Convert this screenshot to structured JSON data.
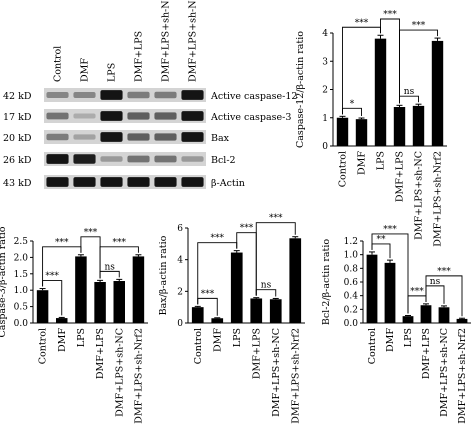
{
  "blot": {
    "lanes": [
      "Control",
      "DMF",
      "LPS",
      "DMF+LPS",
      "DMF+LPS+sh-NC",
      "DMF+LPS+sh-Nrf2"
    ],
    "rows": [
      {
        "kd": "42 kD",
        "protein": "Active caspase-12",
        "levels": [
          0.35,
          0.35,
          0.95,
          0.4,
          0.4,
          0.95
        ]
      },
      {
        "kd": "17 kD",
        "protein": "Active caspase-3",
        "levels": [
          0.45,
          0.15,
          0.95,
          0.55,
          0.55,
          0.95
        ]
      },
      {
        "kd": "20 kD",
        "protein": "Bax",
        "levels": [
          0.4,
          0.2,
          0.95,
          0.55,
          0.55,
          0.95
        ]
      },
      {
        "kd": "26 kD",
        "protein": "Bcl-2",
        "levels": [
          0.95,
          0.9,
          0.25,
          0.45,
          0.45,
          0.25
        ]
      },
      {
        "kd": "43 kD",
        "protein": "β-Actin",
        "levels": [
          0.95,
          0.95,
          0.95,
          0.95,
          0.95,
          0.95
        ]
      }
    ]
  },
  "chart_data": [
    {
      "type": "bar",
      "categories": [
        "Control",
        "DMF",
        "LPS",
        "DMF+LPS",
        "DMF+LPS+sh-NC",
        "DMF+LPS+sh-Nrf2"
      ],
      "values": [
        1.0,
        0.95,
        3.8,
        1.38,
        1.42,
        3.72
      ],
      "errors": [
        0.05,
        0.04,
        0.12,
        0.06,
        0.06,
        0.1
      ],
      "ylabel": "Caspase-12/β-actin ratio",
      "ylim": [
        0,
        4
      ],
      "yticks": [
        0,
        1,
        2,
        3,
        4
      ],
      "significance": [
        {
          "from": 0,
          "to": 1,
          "label": "*"
        },
        {
          "from": 0,
          "to": 2,
          "label": "***"
        },
        {
          "from": 2,
          "to": 3,
          "label": "***"
        },
        {
          "from": 3,
          "to": 4,
          "label": "ns"
        },
        {
          "from": 3,
          "to": 5,
          "label": "***"
        }
      ]
    },
    {
      "type": "bar",
      "categories": [
        "Control",
        "DMF",
        "LPS",
        "DMF+LPS",
        "DMF+LPS+sh-NC",
        "DMF+LPS+sh-Nrf2"
      ],
      "values": [
        1.0,
        0.15,
        2.03,
        1.25,
        1.28,
        2.03
      ],
      "errors": [
        0.05,
        0.02,
        0.05,
        0.05,
        0.05,
        0.05
      ],
      "ylabel": "Caspase-3/β-actin ratio",
      "ylim": [
        0,
        2.5
      ],
      "yticks": [
        0.0,
        0.5,
        1.0,
        1.5,
        2.0,
        2.5
      ],
      "significance": [
        {
          "from": 0,
          "to": 1,
          "label": "***"
        },
        {
          "from": 0,
          "to": 2,
          "label": "***"
        },
        {
          "from": 2,
          "to": 3,
          "label": "***"
        },
        {
          "from": 3,
          "to": 4,
          "label": "ns"
        },
        {
          "from": 3,
          "to": 5,
          "label": "***"
        }
      ]
    },
    {
      "type": "bar",
      "categories": [
        "Control",
        "DMF",
        "LPS",
        "DMF+LPS",
        "DMF+LPS+sh-NC",
        "DMF+LPS+sh-Nrf2"
      ],
      "values": [
        1.0,
        0.3,
        4.45,
        1.55,
        1.5,
        5.35
      ],
      "errors": [
        0.05,
        0.03,
        0.12,
        0.05,
        0.05,
        0.1
      ],
      "ylabel": "Bax/β-actin ratio",
      "ylim": [
        0,
        6
      ],
      "yticks": [
        0,
        2,
        4,
        6
      ],
      "significance": [
        {
          "from": 0,
          "to": 1,
          "label": "***"
        },
        {
          "from": 0,
          "to": 2,
          "label": "***"
        },
        {
          "from": 2,
          "to": 3,
          "label": "***"
        },
        {
          "from": 3,
          "to": 4,
          "label": "ns"
        },
        {
          "from": 3,
          "to": 5,
          "label": "***"
        }
      ]
    },
    {
      "type": "bar",
      "categories": [
        "Control",
        "DMF",
        "LPS",
        "DMF+LPS",
        "DMF+LPS+sh-NC",
        "DMF+LPS+sh-Nrf2"
      ],
      "values": [
        1.0,
        0.88,
        0.1,
        0.26,
        0.23,
        0.06
      ],
      "errors": [
        0.04,
        0.04,
        0.01,
        0.02,
        0.02,
        0.01
      ],
      "ylabel": "Bcl-2/β-actin ratio",
      "ylim": [
        0,
        1.2
      ],
      "yticks": [
        0.0,
        0.2,
        0.4,
        0.6,
        0.8,
        1.0,
        1.2
      ],
      "significance": [
        {
          "from": 0,
          "to": 1,
          "label": "**"
        },
        {
          "from": 0,
          "to": 2,
          "label": "***"
        },
        {
          "from": 2,
          "to": 3,
          "label": "***"
        },
        {
          "from": 3,
          "to": 4,
          "label": "ns"
        },
        {
          "from": 3,
          "to": 5,
          "label": "***"
        }
      ]
    }
  ]
}
